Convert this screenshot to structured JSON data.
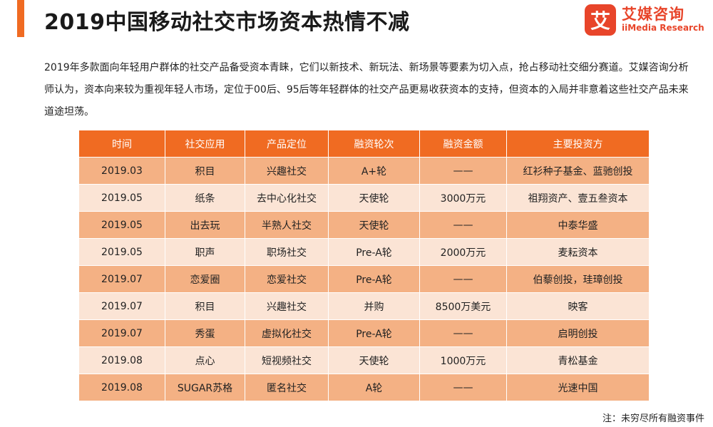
{
  "header": {
    "title": "2019中国移动社交市场资本热情不减"
  },
  "logo": {
    "mark_char": "艾",
    "name_cn": "艾媒咨询",
    "name_en": "iiMedia Research"
  },
  "intro": {
    "text": "2019年多款面向年轻用户群体的社交产品备受资本青睐，它们以新技术、新玩法、新场景等要素为切入点，抢占移动社交细分赛道。艾媒咨询分析师认为，资本向来较为重视年轻人市场，定位于00后、95后等年轻群体的社交产品更易收获资本的支持，但资本的入局并非意着这些社交产品未来道途坦荡。"
  },
  "table": {
    "headers": [
      "时间",
      "社交应用",
      "产品定位",
      "融资轮次",
      "融资金额",
      "主要投资方"
    ],
    "rows": [
      [
        "2019.03",
        "积目",
        "兴趣社交",
        "A+轮",
        "——",
        "红衫种子基金、蓝驰创投"
      ],
      [
        "2019.05",
        "纸条",
        "去中心化社交",
        "天使轮",
        "3000万元",
        "祖翔资产、壹五叁资本"
      ],
      [
        "2019.05",
        "出去玩",
        "半熟人社交",
        "天使轮",
        "——",
        "中泰华盛"
      ],
      [
        "2019.05",
        "职声",
        "职场社交",
        "Pre-A轮",
        "2000万元",
        "麦耘资本"
      ],
      [
        "2019.07",
        "恋爱圈",
        "恋爱社交",
        "Pre-A轮",
        "——",
        "伯藜创投，珪璋创投"
      ],
      [
        "2019.07",
        "积目",
        "兴趣社交",
        "并购",
        "8500万美元",
        "映客"
      ],
      [
        "2019.07",
        "秀蛋",
        "虚拟化社交",
        "Pre-A轮",
        "——",
        "启明创投"
      ],
      [
        "2019.08",
        "点心",
        "短视频社交",
        "天使轮",
        "1000万元",
        "青松基金"
      ],
      [
        "2019.08",
        "SUGAR苏格",
        "匿名社交",
        "A轮",
        "——",
        "光速中国"
      ]
    ]
  },
  "footer": {
    "note": "注：未穷尽所有融资事件"
  },
  "colors": {
    "accent": "#f06b22",
    "row_dark": "#f4b184",
    "row_light": "#fbe4d5",
    "brand_red": "#e8452a"
  }
}
